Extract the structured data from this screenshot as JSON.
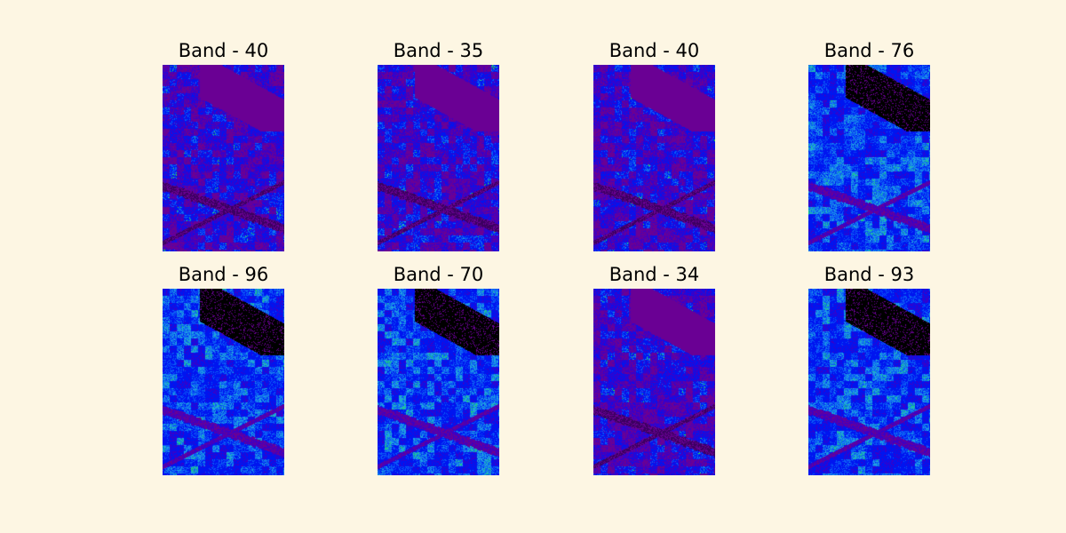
{
  "figure": {
    "background": "#fdf6e3",
    "colormap": [
      "#000000",
      "#3b0060",
      "#6a0094",
      "#3a00c8",
      "#0015f0",
      "#0b5cf6",
      "#1fa3e0",
      "#1bd07a",
      "#35e62a"
    ],
    "panels": [
      {
        "title": "Band - 40",
        "style": "purple"
      },
      {
        "title": "Band - 35",
        "style": "purple"
      },
      {
        "title": "Band - 40",
        "style": "purple"
      },
      {
        "title": "Band - 76",
        "style": "blue"
      },
      {
        "title": "Band - 96",
        "style": "blue"
      },
      {
        "title": "Band - 70",
        "style": "blue"
      },
      {
        "title": "Band - 34",
        "style": "purple"
      },
      {
        "title": "Band - 93",
        "style": "blue"
      }
    ]
  }
}
